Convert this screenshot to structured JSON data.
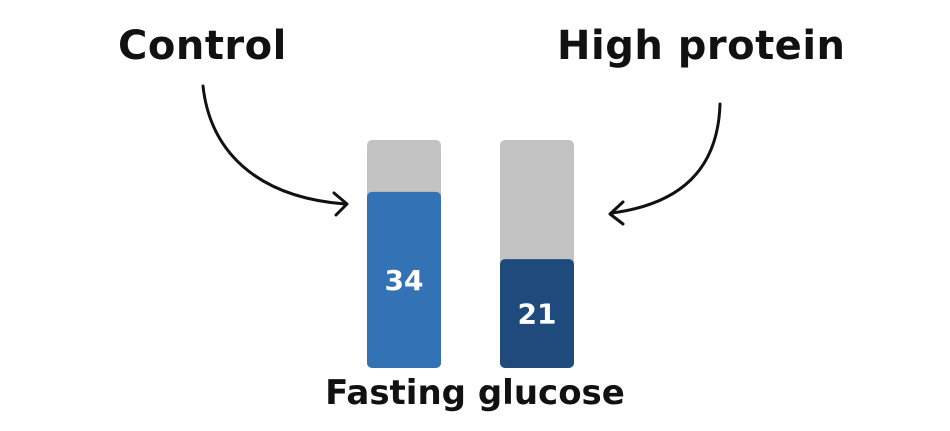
{
  "chart_data": {
    "type": "bar",
    "categories": [
      "Control",
      "High protein"
    ],
    "values": [
      34,
      21
    ],
    "xlabel": "Fasting glucose",
    "ylim": [
      0,
      44
    ],
    "colors": {
      "Control": "#3373b5",
      "High protein": "#1f4b7c",
      "track": "#c3c3c3",
      "label_text": "#ffffff",
      "arrows": "#111111"
    },
    "annotations": [
      "arrow from Control label to Control bar",
      "arrow from High protein label to High protein bar"
    ]
  }
}
